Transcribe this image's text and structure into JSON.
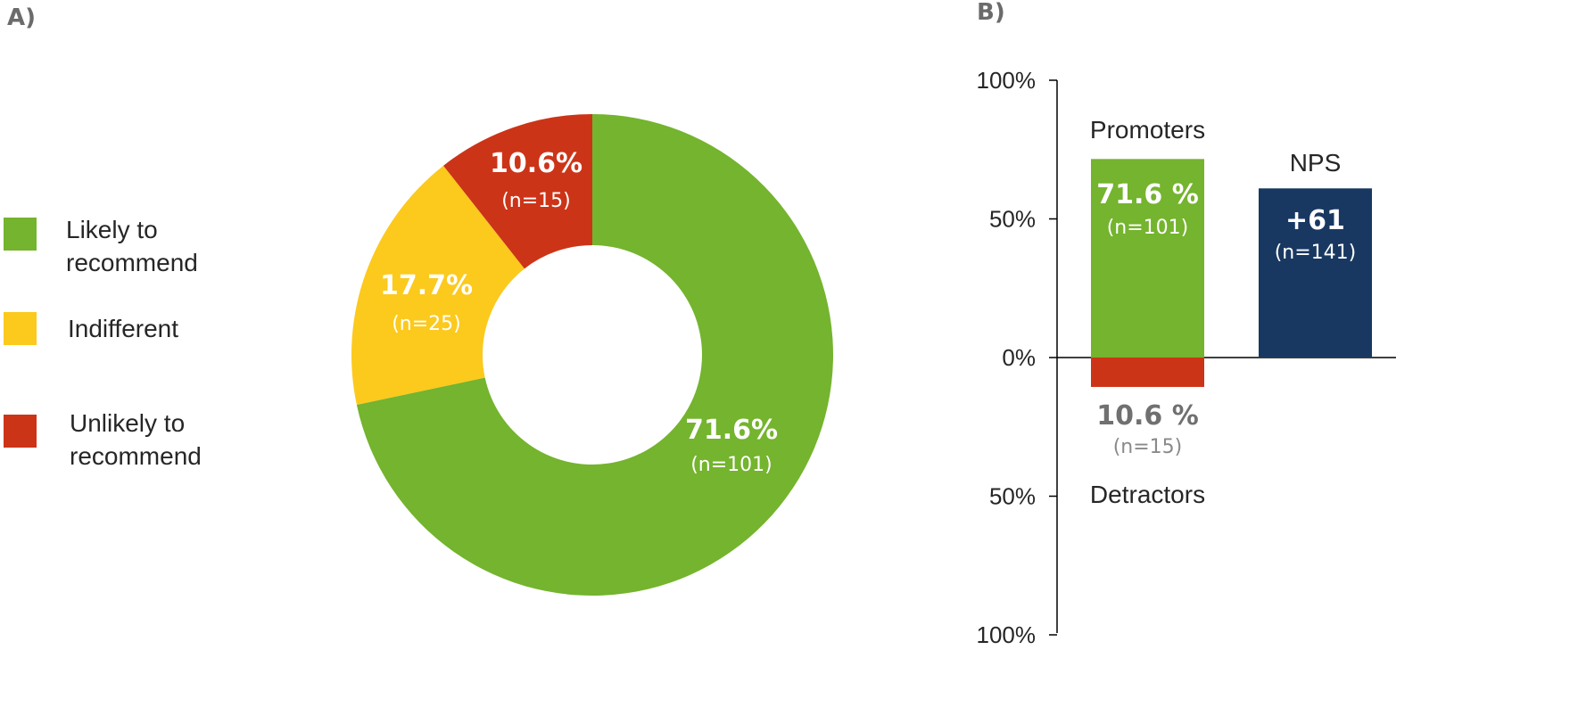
{
  "chart_data": [
    {
      "panel": "A)",
      "type": "pie",
      "donut": true,
      "slices": [
        {
          "label": "Likely to recommend",
          "legend_lines": [
            "Likely to",
            "recommend"
          ],
          "value": 71.6,
          "pct_label": "71.6%",
          "n_label": "(n=101)",
          "color": "#74b42e"
        },
        {
          "label": "Indifferent",
          "legend_lines": [
            "Indifferent"
          ],
          "value": 17.7,
          "pct_label": "17.7%",
          "n_label": "(n=25)",
          "color": "#fcc91d"
        },
        {
          "label": "Unlikely to recommend",
          "legend_lines": [
            "Unlikely to",
            "recommend"
          ],
          "value": 10.6,
          "pct_label": "10.6%",
          "n_label": "(n=15)",
          "color": "#cc3418"
        }
      ],
      "legend_position": "left"
    },
    {
      "panel": "B)",
      "type": "bar",
      "y_ticks": [
        "100%",
        "50%",
        "0%",
        "50%",
        "100%"
      ],
      "ylim": [
        -100,
        100
      ],
      "bars": [
        {
          "category": "Promoters",
          "value": 71.6,
          "pct_label": "71.6 %",
          "n_label": "(n=101)",
          "color": "#74b42e"
        },
        {
          "category": "Detractors",
          "value": -10.6,
          "pct_label": "10.6 %",
          "n_label": "(n=15)",
          "color": "#cc3418"
        },
        {
          "category": "NPS",
          "value": 61,
          "pct_label": "+61",
          "n_label": "(n=141)",
          "color": "#193861"
        }
      ]
    }
  ]
}
